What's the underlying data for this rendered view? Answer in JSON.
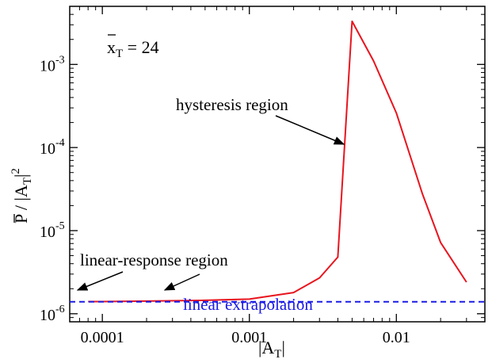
{
  "chart_data": {
    "type": "line",
    "title": "",
    "xlabel": "|A",
    "xlabel_sub": "T",
    "xlabel_suffix": "|",
    "ylabel": "P / |A",
    "ylabel_sub": "T",
    "ylabel_sup": "2",
    "xscale": "log",
    "yscale": "log",
    "xlim": [
      6e-05,
      0.04
    ],
    "ylim": [
      8e-07,
      0.005
    ],
    "x_ticks": [
      {
        "value": 0.0001,
        "label": "0.0001"
      },
      {
        "value": 0.001,
        "label": "0.001"
      },
      {
        "value": 0.01,
        "label": "0.01"
      }
    ],
    "y_ticks": [
      {
        "value": 1e-06,
        "base": "10",
        "exp": "-6"
      },
      {
        "value": 1e-05,
        "base": "10",
        "exp": "-5"
      },
      {
        "value": 0.0001,
        "base": "10",
        "exp": "-4"
      },
      {
        "value": 0.001,
        "base": "10",
        "exp": "-3"
      }
    ],
    "grid": false,
    "series": [
      {
        "color": "#e8141e",
        "style": "solid",
        "x": [
          8e-05,
          0.0001,
          0.0002,
          0.0005,
          0.001,
          0.002,
          0.003,
          0.004,
          0.005,
          0.007,
          0.01,
          0.015,
          0.02,
          0.03
        ],
        "y": [
          1.4e-06,
          1.4e-06,
          1.42e-06,
          1.45e-06,
          1.5e-06,
          1.8e-06,
          2.7e-06,
          4.8e-06,
          0.0033,
          0.0011,
          0.00026,
          2.8e-05,
          7.2e-06,
          2.4e-06
        ]
      },
      {
        "name": "linear extrapolation",
        "color": "#1a1ae6",
        "style": "dashed",
        "x": [
          6e-05,
          0.04
        ],
        "y": [
          1.39e-06,
          1.39e-06
        ]
      }
    ],
    "annotations": {
      "param_label": {
        "text": "x",
        "sub": "T",
        "value": " = 24"
      },
      "hysteresis": {
        "text": "hysteresis region",
        "points_to": {
          "x": 0.0043,
          "y": 8e-05
        }
      },
      "linear_response": {
        "text": "linear-response region",
        "points_to": [
          {
            "x": 7.8e-05,
            "y": 1.4e-06
          },
          {
            "x": 0.00026,
            "y": 1.4e-06
          }
        ]
      },
      "linear_extrapolation": {
        "text": "linear extrapolation",
        "color": "#1a1ae6"
      }
    }
  }
}
